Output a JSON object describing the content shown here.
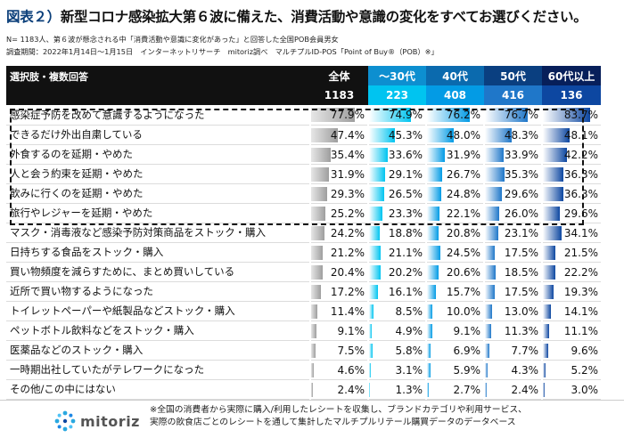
{
  "title_prefix": "図表２）",
  "title_main": "新型コロナ感染拡大第６波に備えた、消費活動や意識の変化をすべてお選びください。",
  "meta_line1": "N= 1183人、第６波が懸念される中「消費活動や意識に変化があった」と回答した全国POB会員男女",
  "meta_line2": "調査期間：2022年1月14日～1月15日　インターネットリサーチ　mitoriz調べ　マルチプルID-POS「Point of Buy®（POB）※」",
  "header_label": "選択肢・複数回答",
  "colors": {
    "total": "#9e9e9e",
    "c30": "#00c4f0",
    "c40": "#039be5",
    "c50": "#1f77c9",
    "c60": "#0d47a1"
  },
  "chart_data": {
    "type": "table",
    "columns": [
      {
        "key": "total",
        "name": "全体",
        "n": "1183"
      },
      {
        "key": "c30",
        "name": "～30代",
        "n": "223"
      },
      {
        "key": "c40",
        "name": "40代",
        "n": "408"
      },
      {
        "key": "c50",
        "name": "50代",
        "n": "416"
      },
      {
        "key": "c60",
        "name": "60代以上",
        "n": "136"
      }
    ],
    "rows": [
      {
        "label": "感染症予防を改めて意識するようになった",
        "values": [
          77.9,
          74.9,
          76.2,
          76.7,
          83.7
        ]
      },
      {
        "label": "できるだけ外出自粛している",
        "values": [
          47.4,
          45.3,
          48.0,
          48.3,
          48.1
        ]
      },
      {
        "label": "外食するのを延期・やめた",
        "values": [
          35.4,
          33.6,
          31.9,
          33.9,
          42.2
        ]
      },
      {
        "label": "人と会う約束を延期・やめた",
        "values": [
          31.9,
          29.1,
          26.7,
          35.3,
          36.3
        ]
      },
      {
        "label": "飲みに行くのを延期・やめた",
        "values": [
          29.3,
          26.5,
          24.8,
          29.6,
          36.3
        ]
      },
      {
        "label": "旅行やレジャーを延期・やめた",
        "values": [
          25.2,
          23.3,
          22.1,
          26.0,
          29.6
        ]
      },
      {
        "label": "マスク・消毒液など感染予防対策商品をストック・購入",
        "values": [
          24.2,
          18.8,
          20.8,
          23.1,
          34.1
        ]
      },
      {
        "label": "日持ちする食品をストック・購入",
        "values": [
          21.2,
          21.1,
          24.5,
          17.5,
          21.5
        ]
      },
      {
        "label": "買い物頻度を減らすために、まとめ買いしている",
        "values": [
          20.4,
          20.2,
          20.6,
          18.5,
          22.2
        ]
      },
      {
        "label": "近所で買い物するようになった",
        "values": [
          17.2,
          16.1,
          15.7,
          17.5,
          19.3
        ]
      },
      {
        "label": "トイレットペーパーや紙製品などストック・購入",
        "values": [
          11.4,
          8.5,
          10.0,
          13.0,
          14.1
        ]
      },
      {
        "label": "ペットボトル飲料などをストック・購入",
        "values": [
          9.1,
          4.9,
          9.1,
          11.3,
          11.1
        ]
      },
      {
        "label": "医薬品などのストック・購入",
        "values": [
          7.5,
          5.8,
          6.9,
          7.7,
          9.6
        ]
      },
      {
        "label": "一時期出社していたがテレワークになった",
        "values": [
          4.6,
          3.1,
          5.9,
          4.3,
          5.2
        ]
      },
      {
        "label": "その他/この中にはない",
        "values": [
          2.4,
          1.3,
          2.7,
          2.4,
          3.0
        ]
      }
    ]
  },
  "footer": {
    "logo_text": "mitoriz",
    "note_line1": "※全国の消費者から実際に購入/利用したレシートを収集し、ブランドカテゴリや利用サービス、",
    "note_line2": "実際の飲食店ごとのレシートを通して集計したマルチプルリテール購買データのデータベース"
  }
}
